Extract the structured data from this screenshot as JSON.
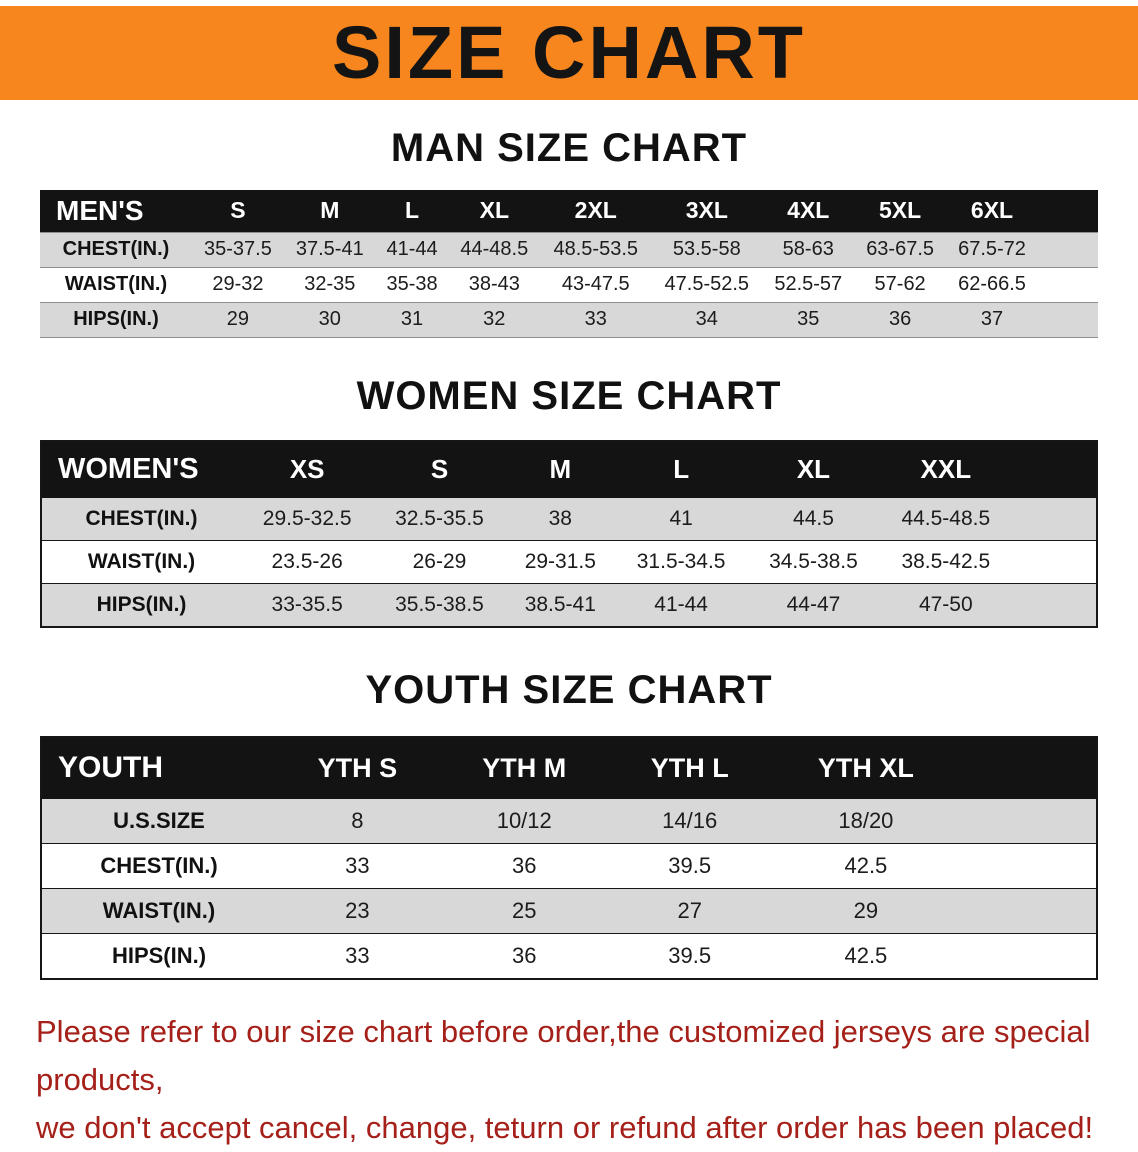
{
  "banner": {
    "title": "SIZE CHART"
  },
  "men": {
    "heading": "MAN SIZE CHART",
    "label": "MEN'S",
    "columns": [
      "S",
      "M",
      "L",
      "XL",
      "2XL",
      "3XL",
      "4XL",
      "5XL",
      "6XL"
    ],
    "rows": [
      {
        "label": "CHEST(IN.)",
        "values": [
          "35-37.5",
          "37.5-41",
          "41-44",
          "44-48.5",
          "48.5-53.5",
          "53.5-58",
          "58-63",
          "63-67.5",
          "67.5-72"
        ]
      },
      {
        "label": "WAIST(IN.)",
        "values": [
          "29-32",
          "32-35",
          "35-38",
          "38-43",
          "43-47.5",
          "47.5-52.5",
          "52.5-57",
          "57-62",
          "62-66.5"
        ]
      },
      {
        "label": "HIPS(IN.)",
        "values": [
          "29",
          "30",
          "31",
          "32",
          "33",
          "34",
          "35",
          "36",
          "37"
        ]
      }
    ]
  },
  "women": {
    "heading": "WOMEN SIZE CHART",
    "label": "WOMEN'S",
    "columns": [
      "XS",
      "S",
      "M",
      "L",
      "XL",
      "XXL"
    ],
    "rows": [
      {
        "label": "CHEST(IN.)",
        "values": [
          "29.5-32.5",
          "32.5-35.5",
          "38",
          "41",
          "44.5",
          "44.5-48.5"
        ]
      },
      {
        "label": "WAIST(IN.)",
        "values": [
          "23.5-26",
          "26-29",
          "29-31.5",
          "31.5-34.5",
          "34.5-38.5",
          "38.5-42.5"
        ]
      },
      {
        "label": "HIPS(IN.)",
        "values": [
          "33-35.5",
          "35.5-38.5",
          "38.5-41",
          "41-44",
          "44-47",
          "47-50"
        ]
      }
    ]
  },
  "youth": {
    "heading": "YOUTH SIZE CHART",
    "label": "YOUTH",
    "columns": [
      "YTH S",
      "YTH M",
      "YTH L",
      "YTH XL"
    ],
    "rows": [
      {
        "label": "U.S.SIZE",
        "values": [
          "8",
          "10/12",
          "14/16",
          "18/20"
        ]
      },
      {
        "label": "CHEST(IN.)",
        "values": [
          "33",
          "36",
          "39.5",
          "42.5"
        ]
      },
      {
        "label": "WAIST(IN.)",
        "values": [
          "23",
          "25",
          "27",
          "29"
        ]
      },
      {
        "label": "HIPS(IN.)",
        "values": [
          "33",
          "36",
          "39.5",
          "42.5"
        ]
      }
    ]
  },
  "footer": {
    "line1": "Please refer to our size chart before order,the customized jerseys are special products,",
    "line2": "we don't accept cancel, change, teturn or refund after order has been placed!"
  },
  "colors": {
    "banner_bg": "#f6861d",
    "header_bg": "#131313",
    "row_alt_bg": "#d8d8d8",
    "footer_text": "#a6201a"
  }
}
